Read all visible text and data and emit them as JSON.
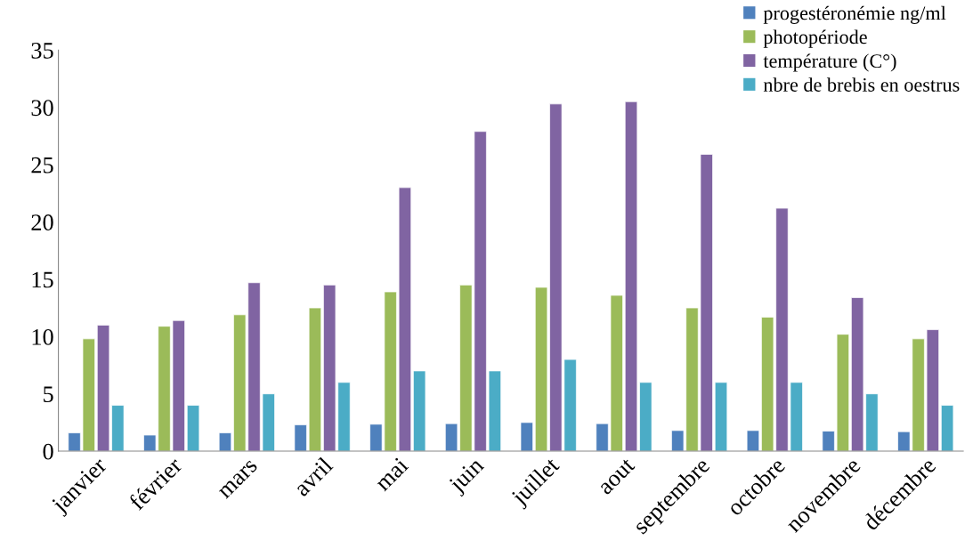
{
  "chart_data": {
    "type": "bar",
    "categories": [
      "janvier",
      "février",
      "mars",
      "avril",
      "mai",
      "juin",
      "juillet",
      "aout",
      "septembre",
      "octobre",
      "novembre",
      "décembre"
    ],
    "series": [
      {
        "name": "progestéronémie ng/ml",
        "color": "#4f81bd",
        "values": [
          1.6,
          1.4,
          1.6,
          2.3,
          2.35,
          2.4,
          2.5,
          2.4,
          1.8,
          1.8,
          1.75,
          1.7
        ]
      },
      {
        "name": "photopériode",
        "color": "#9bbb59",
        "values": [
          9.8,
          10.9,
          11.9,
          12.5,
          13.9,
          14.5,
          14.3,
          13.6,
          12.5,
          11.7,
          10.2,
          9.8
        ]
      },
      {
        "name": "température (C°)",
        "color": "#8064a2",
        "values": [
          11.0,
          11.4,
          14.7,
          14.5,
          23.0,
          27.9,
          30.3,
          30.5,
          25.9,
          21.2,
          13.4,
          10.6
        ]
      },
      {
        "name": "nbre de brebis en oestrus",
        "color": "#4bacc6",
        "values": [
          4,
          4,
          5,
          6,
          7,
          7,
          8,
          6,
          6,
          6,
          5,
          4
        ]
      }
    ],
    "ylim": [
      0,
      35
    ],
    "yticks": [
      0,
      5,
      10,
      15,
      20,
      25,
      30,
      35
    ],
    "grid": false,
    "legend": "top right"
  }
}
